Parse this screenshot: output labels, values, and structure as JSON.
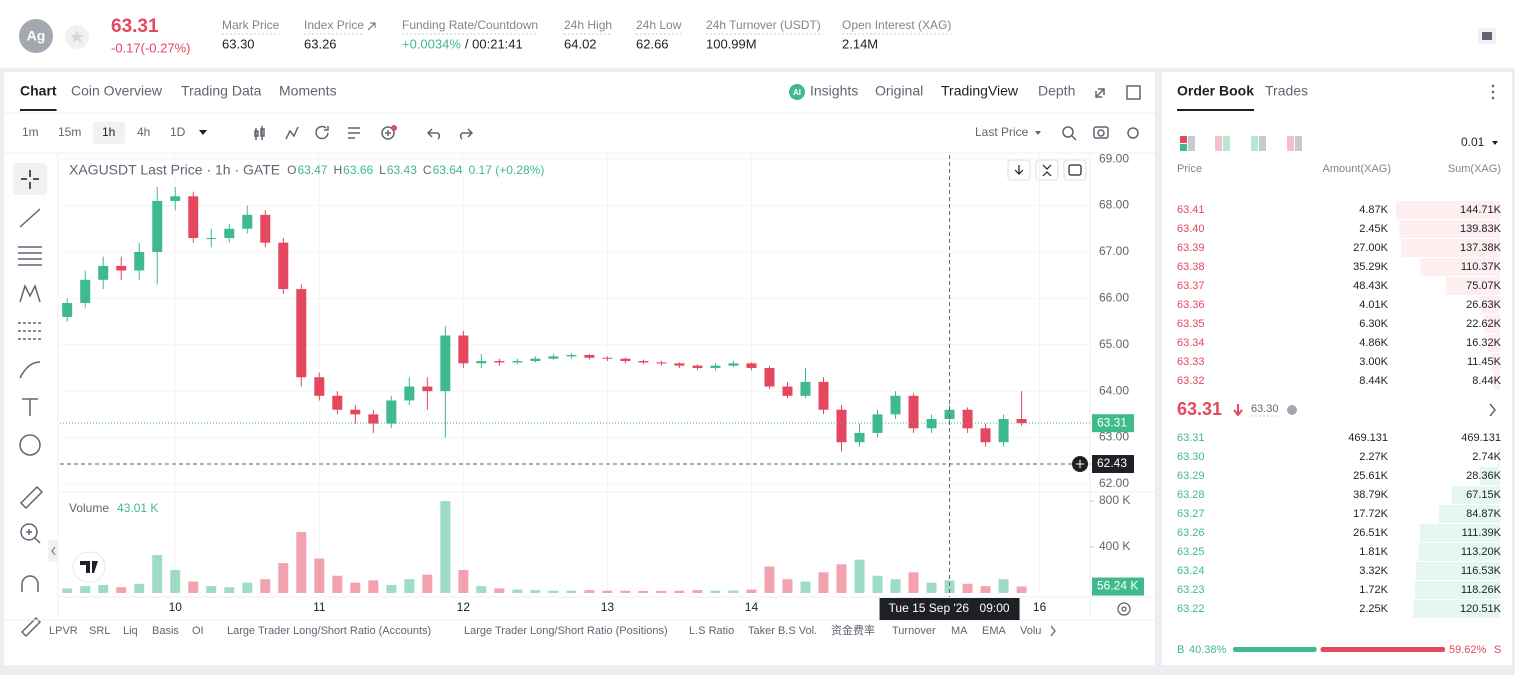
{
  "header": {
    "symbol_icon": "Ag",
    "price": "63.31",
    "change": "-0.17(-0.27%)",
    "stats": [
      {
        "label": "Mark Price",
        "value": "63.30"
      },
      {
        "label": "Index Price",
        "value": "63.26"
      },
      {
        "label": "Funding Rate/Countdown",
        "value": "+0.0034%",
        "countdown": "/ 00:21:41"
      },
      {
        "label": "24h High",
        "value": "64.02"
      },
      {
        "label": "24h Low",
        "value": "62.66"
      },
      {
        "label": "24h Turnover (USDT)",
        "value": "100.99M"
      },
      {
        "label": "Open Interest (XAG)",
        "value": "2.14M"
      }
    ]
  },
  "tabs": {
    "left": [
      "Chart",
      "Coin Overview",
      "Trading Data",
      "Moments"
    ],
    "right": [
      "Insights",
      "Original",
      "TradingView",
      "Depth"
    ]
  },
  "toolbar": {
    "intervals": [
      "1m",
      "15m",
      "1h",
      "4h",
      "1D"
    ],
    "price_type": "Last Price"
  },
  "chart_data": {
    "type": "candlestick",
    "title": "XAGUSDT Last Price · 1h · GATE",
    "ohlc_legend": [
      {
        "key": "O",
        "value": "63.47"
      },
      {
        "key": "H",
        "value": "63.66"
      },
      {
        "key": "L",
        "value": "63.43"
      },
      {
        "key": "C",
        "value": "63.64"
      }
    ],
    "legend_change": "0.17 (+0.28%)",
    "volume_title": "Volume",
    "volume_legend": "43.01 K",
    "up_color": "#3fba8c",
    "down_color": "#e5475f",
    "x": [
      9.25,
      9.375,
      9.5,
      9.625,
      9.75,
      9.875,
      10.0,
      10.125,
      10.25,
      10.375,
      10.5,
      10.625,
      10.75,
      10.875,
      11.0,
      11.125,
      11.25,
      11.375,
      11.5,
      11.625,
      11.75,
      11.875,
      12.0,
      12.125,
      12.25,
      12.375,
      12.5,
      12.625,
      12.75,
      12.875,
      13.0,
      13.125,
      13.25,
      13.375,
      13.5,
      13.625,
      13.75,
      13.875,
      14.0,
      14.125,
      14.25,
      14.375,
      14.5,
      14.625,
      14.75,
      14.875,
      15.0,
      15.125,
      15.25,
      15.375,
      15.5,
      15.625,
      15.75,
      15.875
    ],
    "open": [
      65.6,
      65.9,
      66.4,
      66.7,
      66.6,
      67.0,
      68.1,
      68.2,
      67.3,
      67.3,
      67.5,
      67.8,
      67.2,
      66.2,
      64.3,
      63.9,
      63.6,
      63.5,
      63.3,
      63.8,
      64.1,
      64.0,
      65.2,
      64.6,
      64.65,
      64.62,
      64.65,
      64.7,
      64.75,
      64.78,
      64.72,
      64.7,
      64.65,
      64.62,
      64.6,
      64.55,
      64.5,
      64.55,
      64.6,
      64.5,
      64.1,
      63.9,
      64.2,
      63.6,
      62.9,
      63.1,
      63.5,
      63.9,
      63.2,
      63.4,
      63.6,
      63.2,
      62.9,
      63.4
    ],
    "high": [
      66.0,
      66.6,
      66.9,
      66.9,
      67.2,
      68.4,
      68.4,
      68.3,
      67.5,
      67.6,
      68.0,
      67.9,
      67.3,
      66.3,
      64.4,
      64.0,
      63.7,
      63.6,
      63.9,
      64.3,
      64.3,
      65.4,
      65.3,
      64.8,
      64.7,
      64.7,
      64.75,
      64.8,
      64.82,
      64.8,
      64.75,
      64.72,
      64.68,
      64.65,
      64.62,
      64.58,
      64.6,
      64.65,
      64.62,
      64.55,
      64.2,
      64.5,
      64.3,
      63.7,
      63.3,
      63.6,
      64.0,
      63.95,
      63.5,
      63.7,
      63.65,
      63.3,
      63.5,
      64.0
    ],
    "low": [
      65.5,
      65.8,
      66.2,
      66.4,
      66.4,
      66.3,
      67.9,
      67.2,
      67.1,
      67.2,
      67.4,
      67.1,
      66.1,
      64.1,
      63.8,
      63.5,
      63.3,
      63.1,
      63.2,
      63.7,
      63.6,
      63.0,
      64.5,
      64.5,
      64.55,
      64.58,
      64.62,
      64.68,
      64.7,
      64.68,
      64.65,
      64.6,
      64.58,
      64.55,
      64.5,
      64.45,
      64.45,
      64.52,
      64.45,
      64.05,
      63.85,
      63.85,
      63.5,
      62.7,
      62.8,
      63.0,
      63.4,
      63.1,
      63.1,
      63.3,
      63.1,
      62.8,
      62.8,
      63.25
    ],
    "close": [
      65.9,
      66.4,
      66.7,
      66.6,
      67.0,
      68.1,
      68.2,
      67.3,
      67.3,
      67.5,
      67.8,
      67.2,
      66.2,
      64.3,
      63.9,
      63.6,
      63.5,
      63.3,
      63.8,
      64.1,
      64.0,
      65.2,
      64.6,
      64.65,
      64.62,
      64.65,
      64.7,
      64.75,
      64.78,
      64.72,
      64.7,
      64.65,
      64.62,
      64.6,
      64.55,
      64.5,
      64.55,
      64.6,
      64.5,
      64.1,
      63.9,
      64.2,
      63.6,
      62.9,
      63.1,
      63.5,
      63.9,
      63.2,
      63.4,
      63.6,
      63.2,
      62.9,
      63.4,
      63.31
    ],
    "volume": [
      40000,
      60000,
      70000,
      50000,
      80000,
      330000,
      200000,
      100000,
      60000,
      50000,
      90000,
      120000,
      260000,
      530000,
      300000,
      150000,
      90000,
      110000,
      70000,
      120000,
      160000,
      800000,
      200000,
      60000,
      40000,
      30000,
      25000,
      20000,
      20000,
      25000,
      20000,
      20000,
      18000,
      18000,
      20000,
      25000,
      20000,
      22000,
      30000,
      230000,
      120000,
      100000,
      180000,
      250000,
      290000,
      150000,
      120000,
      180000,
      90000,
      110000,
      80000,
      60000,
      120000,
      56240
    ],
    "last_volume_label": "56.24 K",
    "xlim": [
      9.2,
      16.35
    ],
    "xticks": [
      10,
      11,
      12,
      13,
      14,
      16
    ],
    "ylim": [
      61.87,
      69.09
    ],
    "yticks": [
      {
        "value": 62,
        "label": "62.00"
      },
      {
        "value": 63,
        "label": "63.00"
      },
      {
        "value": 64,
        "label": "64.00"
      },
      {
        "value": 65,
        "label": "65.00"
      },
      {
        "value": 66,
        "label": "66.00"
      },
      {
        "value": 67,
        "label": "67.00"
      },
      {
        "value": 68,
        "label": "68.00"
      },
      {
        "value": 69,
        "label": "69.00"
      }
    ],
    "volume_ylim": [
      0,
      800000
    ],
    "volume_ticks": [
      {
        "value": 400000,
        "label": "400 K"
      },
      {
        "value": 800000,
        "label": "800 K"
      }
    ],
    "last_price": 63.31,
    "crosshair": {
      "price": 62.43,
      "x": 15.375,
      "date": "Tue 15 Sep '26",
      "time": "09:00"
    },
    "grid": true
  },
  "indicators": [
    "LPVR",
    "SRL",
    "Liq",
    "Basis",
    "OI",
    "Large Trader Long/Short Ratio (Accounts)",
    "Large Trader Long/Short Ratio (Positions)",
    "L.S Ratio",
    "Taker B.S Vol.",
    "资金费率",
    "Turnover",
    "MA",
    "EMA",
    "Volu"
  ],
  "order_book": {
    "tabs": [
      "Order Book",
      "Trades"
    ],
    "precision": "0.01",
    "columns": [
      "Price",
      "Amount(XAG)",
      "Sum(XAG)"
    ],
    "asks": [
      {
        "price": "63.41",
        "amount": "4.87K",
        "sum": {
          "value": 144710,
          "label": "144.71K"
        }
      },
      {
        "price": "63.40",
        "amount": "2.45K",
        "sum": {
          "value": 139830,
          "label": "139.83K"
        }
      },
      {
        "price": "63.39",
        "amount": "27.00K",
        "sum": {
          "value": 137380,
          "label": "137.38K"
        }
      },
      {
        "price": "63.38",
        "amount": "35.29K",
        "sum": {
          "value": 110370,
          "label": "110.37K"
        }
      },
      {
        "price": "63.37",
        "amount": "48.43K",
        "sum": {
          "value": 75070,
          "label": "75.07K"
        }
      },
      {
        "price": "63.36",
        "amount": "4.01K",
        "sum": {
          "value": 26630,
          "label": "26.63K"
        }
      },
      {
        "price": "63.35",
        "amount": "6.30K",
        "sum": {
          "value": 22620,
          "label": "22.62K"
        }
      },
      {
        "price": "63.34",
        "amount": "4.86K",
        "sum": {
          "value": 16320,
          "label": "16.32K"
        }
      },
      {
        "price": "63.33",
        "amount": "3.00K",
        "sum": {
          "value": 11450,
          "label": "11.45K"
        }
      },
      {
        "price": "63.32",
        "amount": "8.44K",
        "sum": {
          "value": 8440,
          "label": "8.44K"
        }
      }
    ],
    "mid": {
      "price": "63.31",
      "mark": "63.30"
    },
    "bids": [
      {
        "price": "63.31",
        "amount": "469.131",
        "sum": {
          "value": 469.131,
          "label": "469.131"
        }
      },
      {
        "price": "63.30",
        "amount": "2.27K",
        "sum": {
          "value": 2740,
          "label": "2.74K"
        }
      },
      {
        "price": "63.29",
        "amount": "25.61K",
        "sum": {
          "value": 28360,
          "label": "28.36K"
        }
      },
      {
        "price": "63.28",
        "amount": "38.79K",
        "sum": {
          "value": 67150,
          "label": "67.15K"
        }
      },
      {
        "price": "63.27",
        "amount": "17.72K",
        "sum": {
          "value": 84870,
          "label": "84.87K"
        }
      },
      {
        "price": "63.26",
        "amount": "26.51K",
        "sum": {
          "value": 111390,
          "label": "111.39K"
        }
      },
      {
        "price": "63.25",
        "amount": "1.81K",
        "sum": {
          "value": 113200,
          "label": "113.20K"
        }
      },
      {
        "price": "63.24",
        "amount": "3.32K",
        "sum": {
          "value": 116530,
          "label": "116.53K"
        }
      },
      {
        "price": "63.23",
        "amount": "1.72K",
        "sum": {
          "value": 118260,
          "label": "118.26K"
        }
      },
      {
        "price": "63.22",
        "amount": "2.25K",
        "sum": {
          "value": 120510,
          "label": "120.51K"
        }
      }
    ],
    "ratio": {
      "buy_label": "B",
      "buy": {
        "value": 40.38,
        "label": "40.38%"
      },
      "sell": {
        "value": 59.62,
        "label": "59.62%"
      },
      "sell_label": "S"
    }
  }
}
